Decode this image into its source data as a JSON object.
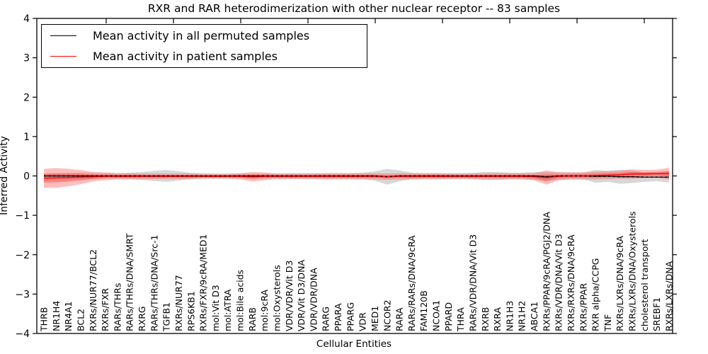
{
  "chart_data": {
    "type": "line",
    "title": "RXR and RAR heterodimerization with other nuclear receptor -- 83 samples",
    "xlabel": "Cellular Entities",
    "ylabel": "Inferred Activity",
    "ylim": [
      -4,
      4
    ],
    "yticks": [
      4,
      3,
      2,
      1,
      0,
      -1,
      -2,
      -3,
      -4
    ],
    "grid": false,
    "legend_position": "upper left",
    "legend": [
      {
        "label": "Mean activity in all permuted samples",
        "color": "#000000"
      },
      {
        "label": "Mean activity in patient samples",
        "color": "#ff0000"
      }
    ],
    "band_colors": {
      "permuted": "#c9c9c9",
      "patient_outer": "#ff5555",
      "patient_inner": "#ff3333"
    },
    "categories": [
      "THRB",
      "NR1H4",
      "NR4A1",
      "BCL2",
      "RXRs/NUR77/BCL2",
      "RXRs/FXR",
      "RARs/THRs",
      "RARs/THRs/DNA/SMRT",
      "RXRG",
      "RARs/THRs/DNA/Src-1",
      "TGFB1",
      "RXRs/NUR77",
      "RPS6KB1",
      "RXRs/FXR/9cRA/MED1",
      "mol:Vit D3",
      "mol:ATRA",
      "mol:Bile acids",
      "RARB",
      "mol:9cRA",
      "mol:Oxysterols",
      "VDR/VDR/Vit D3",
      "VDR/Vit D3/DNA",
      "VDR/VDR/DNA",
      "RARG",
      "PPARA",
      "PPARG",
      "VDR",
      "MED1",
      "NCOR2",
      "RARA",
      "RARs/RARs/DNA/9cRA",
      "FAM120B",
      "NCOA1",
      "PPARD",
      "THRA",
      "RARs/VDR/DNA/Vit D3",
      "RXRB",
      "RXRA",
      "NR1H3",
      "NR1H2",
      "ABCA1",
      "RXRs/PPAR/9cRA/PGJ2/DNA",
      "RXRs/VDR/DNA/Vit D3",
      "RXRs/RXRs/DNA/9cRA",
      "RXRs/PPAR",
      "RXR alpha/CCPG",
      "TNF",
      "RXRs/LXRs/DNA/9cRA",
      "RXRs/LXRs/DNA/Oxysterols",
      "cholesterol transport",
      "SREBF1",
      "RXRs/LXRs/DNA"
    ],
    "series": [
      {
        "name": "Mean activity in all permuted samples",
        "color": "#000000",
        "values": [
          0,
          0,
          0,
          0,
          0,
          0,
          0,
          0,
          0,
          0,
          0,
          0,
          0,
          0,
          0,
          0,
          0,
          0,
          0,
          0,
          0,
          0,
          0,
          0,
          0,
          0,
          0,
          0,
          -0.02,
          0,
          0,
          0,
          0,
          0,
          0,
          0,
          0,
          0,
          0,
          0,
          0,
          -0.02,
          0,
          0,
          0,
          -0.01,
          -0.01,
          -0.02,
          -0.02,
          -0.03,
          -0.03,
          -0.03
        ],
        "std": [
          0.07,
          0.07,
          0.08,
          0.09,
          0.08,
          0.07,
          0.07,
          0.08,
          0.1,
          0.13,
          0.15,
          0.12,
          0.08,
          0.07,
          0.06,
          0.06,
          0.06,
          0.06,
          0.06,
          0.06,
          0.07,
          0.07,
          0.07,
          0.07,
          0.07,
          0.07,
          0.08,
          0.12,
          0.2,
          0.14,
          0.08,
          0.07,
          0.07,
          0.07,
          0.07,
          0.08,
          0.1,
          0.1,
          0.08,
          0.08,
          0.1,
          0.12,
          0.1,
          0.09,
          0.09,
          0.16,
          0.14,
          0.18,
          0.16,
          0.12,
          0.1,
          0.14
        ]
      },
      {
        "name": "Mean activity in patient samples",
        "color": "#ff0000",
        "values": [
          -0.06,
          -0.05,
          -0.04,
          -0.03,
          -0.02,
          -0.01,
          -0.01,
          -0.01,
          -0.01,
          -0.01,
          -0.01,
          -0.01,
          -0.01,
          -0.01,
          -0.01,
          -0.01,
          -0.01,
          -0.02,
          -0.01,
          -0.01,
          -0.01,
          -0.01,
          -0.01,
          -0.01,
          -0.01,
          -0.01,
          -0.01,
          -0.01,
          -0.02,
          -0.01,
          -0.01,
          -0.01,
          -0.01,
          -0.01,
          -0.01,
          -0.01,
          -0.01,
          -0.01,
          -0.01,
          -0.01,
          -0.02,
          -0.04,
          -0.01,
          0,
          0,
          0.01,
          0.02,
          0.03,
          0.05,
          0.05,
          0.06,
          0.06
        ],
        "std": [
          0.24,
          0.25,
          0.22,
          0.18,
          0.12,
          0.1,
          0.08,
          0.08,
          0.07,
          0.07,
          0.07,
          0.07,
          0.07,
          0.06,
          0.06,
          0.06,
          0.08,
          0.12,
          0.1,
          0.07,
          0.07,
          0.07,
          0.07,
          0.08,
          0.08,
          0.08,
          0.08,
          0.08,
          0.08,
          0.08,
          0.08,
          0.08,
          0.08,
          0.07,
          0.07,
          0.07,
          0.08,
          0.08,
          0.08,
          0.08,
          0.09,
          0.18,
          0.1,
          0.09,
          0.09,
          0.1,
          0.1,
          0.1,
          0.12,
          0.1,
          0.1,
          0.15
        ]
      }
    ]
  }
}
